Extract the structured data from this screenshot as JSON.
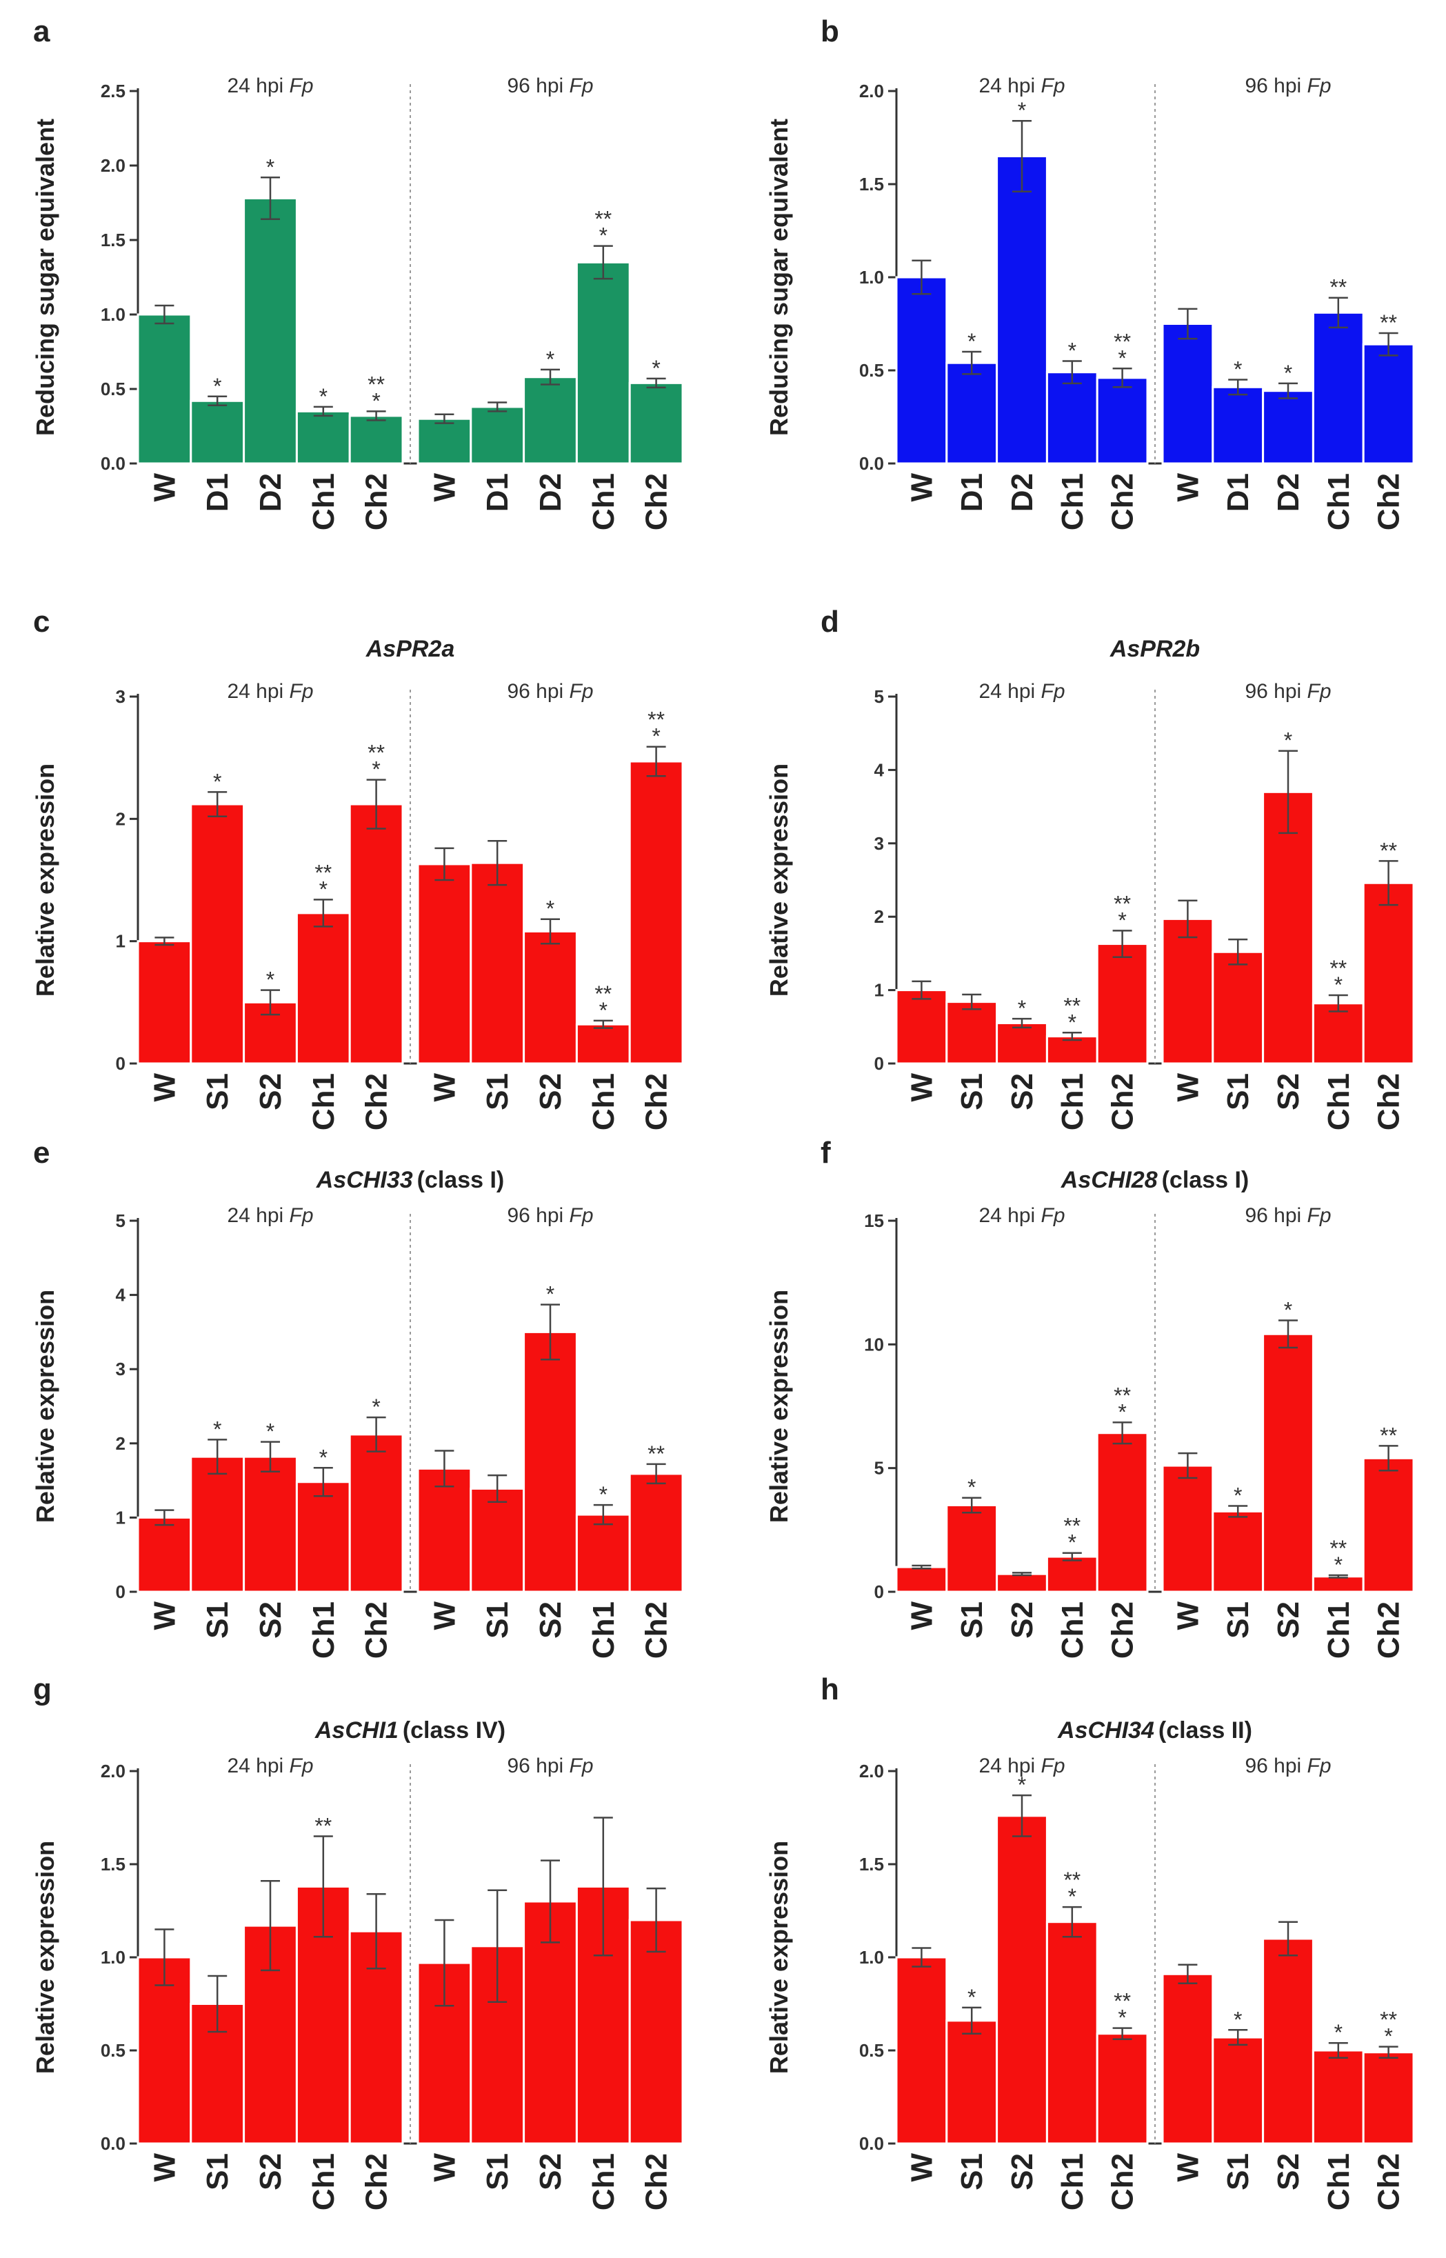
{
  "ylabel_sugar": "Reducing sugar equivalent",
  "ylabel_expr": "Relative expression",
  "group_labels": [
    {
      "prefix": "24 hpi ",
      "italic": "Fp"
    },
    {
      "prefix": "96 hpi ",
      "italic": "Fp"
    }
  ],
  "chart_data": [
    {
      "panel": "a",
      "type": "bar",
      "color": "#1a9462",
      "title": "",
      "title_suffix": "",
      "ylabel": "Reducing sugar equivalent",
      "ylim": [
        0,
        2.5
      ],
      "yticks": [
        "0.0",
        "0.5",
        "1.0",
        "1.5",
        "2.0",
        "2.5"
      ],
      "groups": [
        "24 hpi Fp",
        "96 hpi Fp"
      ],
      "categories": [
        "W",
        "D1",
        "D2",
        "Ch1",
        "Ch2",
        "W",
        "D1",
        "D2",
        "Ch1",
        "Ch2"
      ],
      "values": [
        1.0,
        0.42,
        1.78,
        0.35,
        0.32,
        0.3,
        0.38,
        0.58,
        1.35,
        0.54
      ],
      "errors": [
        0.06,
        0.03,
        0.14,
        0.03,
        0.03,
        0.03,
        0.03,
        0.05,
        0.11,
        0.03
      ],
      "significance": [
        [
          "",
          ""
        ],
        [
          "*",
          ""
        ],
        [
          "*",
          ""
        ],
        [
          "*",
          ""
        ],
        [
          "**",
          "*"
        ],
        [
          "",
          ""
        ],
        [
          "",
          ""
        ],
        [
          "*",
          ""
        ],
        [
          "**",
          "*"
        ],
        [
          "*",
          ""
        ]
      ]
    },
    {
      "panel": "b",
      "type": "bar",
      "color": "#0b12f2",
      "title": "",
      "title_suffix": "",
      "ylabel": "Reducing sugar equivalent",
      "ylim": [
        0,
        2.0
      ],
      "yticks": [
        "0.0",
        "0.5",
        "1.0",
        "1.5",
        "2.0"
      ],
      "groups": [
        "24 hpi Fp",
        "96 hpi Fp"
      ],
      "categories": [
        "W",
        "D1",
        "D2",
        "Ch1",
        "Ch2",
        "W",
        "D1",
        "D2",
        "Ch1",
        "Ch2"
      ],
      "values": [
        1.0,
        0.54,
        1.65,
        0.49,
        0.46,
        0.75,
        0.41,
        0.39,
        0.81,
        0.64
      ],
      "errors": [
        0.09,
        0.06,
        0.19,
        0.06,
        0.05,
        0.08,
        0.04,
        0.04,
        0.08,
        0.06
      ],
      "significance": [
        [
          "",
          ""
        ],
        [
          "*",
          ""
        ],
        [
          "*",
          ""
        ],
        [
          "*",
          ""
        ],
        [
          "**",
          "*"
        ],
        [
          "",
          ""
        ],
        [
          "*",
          ""
        ],
        [
          "*",
          ""
        ],
        [
          "**",
          ""
        ],
        [
          "**",
          ""
        ]
      ]
    },
    {
      "panel": "c",
      "type": "bar",
      "color": "#f5100f",
      "title": "AsPR2a",
      "title_suffix": "",
      "ylabel": "Relative expression",
      "ylim": [
        0,
        3
      ],
      "yticks": [
        "0",
        "1",
        "2",
        "3"
      ],
      "groups": [
        "24 hpi Fp",
        "96 hpi Fp"
      ],
      "categories": [
        "W",
        "S1",
        "S2",
        "Ch1",
        "Ch2",
        "W",
        "S1",
        "S2",
        "Ch1",
        "Ch2"
      ],
      "values": [
        1.0,
        2.12,
        0.5,
        1.23,
        2.12,
        1.63,
        1.64,
        1.08,
        0.32,
        2.47
      ],
      "errors": [
        0.03,
        0.1,
        0.1,
        0.11,
        0.2,
        0.13,
        0.18,
        0.1,
        0.03,
        0.12
      ],
      "significance": [
        [
          "",
          ""
        ],
        [
          "*",
          ""
        ],
        [
          "*",
          ""
        ],
        [
          "**",
          "*"
        ],
        [
          "**",
          "*"
        ],
        [
          "",
          ""
        ],
        [
          "",
          ""
        ],
        [
          "*",
          ""
        ],
        [
          "**",
          "*"
        ],
        [
          "**",
          "*"
        ]
      ]
    },
    {
      "panel": "d",
      "type": "bar",
      "color": "#f5100f",
      "title": "AsPR2b",
      "title_suffix": "",
      "ylabel": "Relative expression",
      "ylim": [
        0,
        5
      ],
      "yticks": [
        "0",
        "1",
        "2",
        "3",
        "4",
        "5"
      ],
      "groups": [
        "24 hpi Fp",
        "96 hpi Fp"
      ],
      "categories": [
        "W",
        "S1",
        "S2",
        "Ch1",
        "Ch2",
        "W",
        "S1",
        "S2",
        "Ch1",
        "Ch2"
      ],
      "values": [
        1.0,
        0.84,
        0.55,
        0.37,
        1.63,
        1.97,
        1.52,
        3.7,
        0.82,
        2.46
      ],
      "errors": [
        0.12,
        0.1,
        0.06,
        0.05,
        0.18,
        0.25,
        0.17,
        0.56,
        0.11,
        0.3
      ],
      "significance": [
        [
          "",
          ""
        ],
        [
          "",
          ""
        ],
        [
          "*",
          ""
        ],
        [
          "**",
          "*"
        ],
        [
          "**",
          "*"
        ],
        [
          "",
          ""
        ],
        [
          "",
          ""
        ],
        [
          "*",
          ""
        ],
        [
          "**",
          "*"
        ],
        [
          "**",
          ""
        ]
      ]
    },
    {
      "panel": "e",
      "type": "bar",
      "color": "#f5100f",
      "title": "AsCHI33",
      "title_suffix": "(class I)",
      "ylabel": "Relative expression",
      "ylim": [
        0,
        5
      ],
      "yticks": [
        "0",
        "1",
        "2",
        "3",
        "4",
        "5"
      ],
      "groups": [
        "24 hpi Fp",
        "96 hpi Fp"
      ],
      "categories": [
        "W",
        "S1",
        "S2",
        "Ch1",
        "Ch2",
        "W",
        "S1",
        "S2",
        "Ch1",
        "Ch2"
      ],
      "values": [
        1.0,
        1.82,
        1.82,
        1.48,
        2.12,
        1.66,
        1.39,
        3.5,
        1.04,
        1.59
      ],
      "errors": [
        0.1,
        0.23,
        0.2,
        0.19,
        0.23,
        0.24,
        0.18,
        0.37,
        0.13,
        0.13
      ],
      "significance": [
        [
          "",
          ""
        ],
        [
          "*",
          ""
        ],
        [
          "*",
          ""
        ],
        [
          "*",
          ""
        ],
        [
          "*",
          ""
        ],
        [
          "",
          ""
        ],
        [
          "",
          ""
        ],
        [
          "*",
          ""
        ],
        [
          "*",
          ""
        ],
        [
          "**",
          ""
        ]
      ]
    },
    {
      "panel": "f",
      "type": "bar",
      "color": "#f5100f",
      "title": "AsCHI28",
      "title_suffix": "(class I)",
      "ylabel": "Relative expression",
      "ylim": [
        0,
        15
      ],
      "yticks": [
        "0",
        "5",
        "10",
        "15"
      ],
      "groups": [
        "24 hpi Fp",
        "96 hpi Fp"
      ],
      "categories": [
        "W",
        "S1",
        "S2",
        "Ch1",
        "Ch2",
        "W",
        "S1",
        "S2",
        "Ch1",
        "Ch2"
      ],
      "values": [
        1.0,
        3.5,
        0.72,
        1.42,
        6.42,
        5.1,
        3.25,
        10.42,
        0.62,
        5.4
      ],
      "errors": [
        0.06,
        0.3,
        0.05,
        0.15,
        0.43,
        0.5,
        0.22,
        0.55,
        0.05,
        0.5
      ],
      "significance": [
        [
          "",
          ""
        ],
        [
          "*",
          ""
        ],
        [
          "",
          ""
        ],
        [
          "**",
          "*"
        ],
        [
          "**",
          "*"
        ],
        [
          "",
          ""
        ],
        [
          "*",
          ""
        ],
        [
          "*",
          ""
        ],
        [
          "**",
          "*"
        ],
        [
          "**",
          ""
        ]
      ]
    },
    {
      "panel": "g",
      "type": "bar",
      "color": "#f5100f",
      "title": "AsCHI1",
      "title_suffix": "(class IV)",
      "ylabel": "Relative expression",
      "ylim": [
        0,
        2.0
      ],
      "yticks": [
        "0.0",
        "0.5",
        "1.0",
        "1.5",
        "2.0"
      ],
      "groups": [
        "24 hpi Fp",
        "96 hpi Fp"
      ],
      "categories": [
        "W",
        "S1",
        "S2",
        "Ch1",
        "Ch2",
        "W",
        "S1",
        "S2",
        "Ch1",
        "Ch2"
      ],
      "values": [
        1.0,
        0.75,
        1.17,
        1.38,
        1.14,
        0.97,
        1.06,
        1.3,
        1.38,
        1.2
      ],
      "errors": [
        0.15,
        0.15,
        0.24,
        0.27,
        0.2,
        0.23,
        0.3,
        0.22,
        0.37,
        0.17
      ],
      "significance": [
        [
          "",
          ""
        ],
        [
          "",
          ""
        ],
        [
          "",
          ""
        ],
        [
          "**",
          ""
        ],
        [
          "",
          ""
        ],
        [
          "",
          ""
        ],
        [
          "",
          ""
        ],
        [
          "",
          ""
        ],
        [
          "",
          ""
        ],
        [
          "",
          ""
        ]
      ]
    },
    {
      "panel": "h",
      "type": "bar",
      "color": "#f5100f",
      "title": "AsCHI34",
      "title_suffix": "(class II)",
      "ylabel": "Relative expression",
      "ylim": [
        0,
        2.0
      ],
      "yticks": [
        "0.0",
        "0.5",
        "1.0",
        "1.5",
        "2.0"
      ],
      "groups": [
        "24 hpi Fp",
        "96 hpi Fp"
      ],
      "categories": [
        "W",
        "S1",
        "S2",
        "Ch1",
        "Ch2",
        "W",
        "S1",
        "S2",
        "Ch1",
        "Ch2"
      ],
      "values": [
        1.0,
        0.66,
        1.76,
        1.19,
        0.59,
        0.91,
        0.57,
        1.1,
        0.5,
        0.49
      ],
      "errors": [
        0.05,
        0.07,
        0.11,
        0.08,
        0.03,
        0.05,
        0.04,
        0.09,
        0.04,
        0.03
      ],
      "significance": [
        [
          "",
          ""
        ],
        [
          "*",
          ""
        ],
        [
          "*",
          ""
        ],
        [
          "**",
          "*"
        ],
        [
          "**",
          "*"
        ],
        [
          "",
          ""
        ],
        [
          "*",
          ""
        ],
        [
          "",
          ""
        ],
        [
          "*",
          ""
        ],
        [
          "**",
          "*"
        ]
      ]
    }
  ]
}
